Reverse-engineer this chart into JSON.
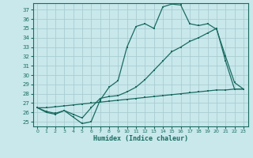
{
  "xlabel": "Humidex (Indice chaleur)",
  "bg_color": "#c8e8ec",
  "line_color": "#1a6b60",
  "grid_color": "#b0d4d8",
  "xlim": [
    -0.5,
    23.5
  ],
  "ylim": [
    24.5,
    37.7
  ],
  "yticks": [
    25,
    26,
    27,
    28,
    29,
    30,
    31,
    32,
    33,
    34,
    35,
    36,
    37
  ],
  "xticks": [
    0,
    1,
    2,
    3,
    4,
    5,
    6,
    7,
    8,
    9,
    10,
    11,
    12,
    13,
    14,
    15,
    16,
    17,
    18,
    19,
    20,
    21,
    22,
    23
  ],
  "line1_x": [
    0,
    1,
    2,
    3,
    4,
    5,
    6,
    7,
    8,
    9,
    10,
    11,
    12,
    13,
    14,
    15,
    16,
    17,
    18,
    19,
    20,
    21,
    22,
    23
  ],
  "line1_y": [
    26.5,
    26.0,
    25.8,
    26.2,
    25.5,
    24.8,
    25.0,
    27.3,
    28.7,
    29.4,
    33.0,
    35.2,
    35.5,
    35.0,
    37.3,
    37.6,
    37.5,
    35.5,
    35.3,
    35.5,
    34.9,
    32.0,
    29.2,
    28.5
  ],
  "line2_x": [
    0,
    1,
    2,
    3,
    4,
    5,
    6,
    7,
    8,
    9,
    10,
    11,
    12,
    13,
    14,
    15,
    16,
    17,
    18,
    19,
    20,
    21,
    22,
    23
  ],
  "line2_y": [
    26.5,
    26.1,
    25.9,
    26.2,
    25.8,
    25.4,
    26.5,
    27.5,
    27.7,
    27.8,
    28.2,
    28.7,
    29.5,
    30.5,
    31.5,
    32.5,
    33.0,
    33.6,
    34.0,
    34.5,
    35.0,
    31.5,
    28.5,
    28.5
  ],
  "line3_x": [
    0,
    1,
    2,
    3,
    4,
    5,
    6,
    7,
    8,
    9,
    10,
    11,
    12,
    13,
    14,
    15,
    16,
    17,
    18,
    19,
    20,
    21,
    22,
    23
  ],
  "line3_y": [
    26.5,
    26.5,
    26.6,
    26.7,
    26.8,
    26.9,
    27.0,
    27.1,
    27.2,
    27.3,
    27.4,
    27.5,
    27.6,
    27.7,
    27.8,
    27.9,
    28.0,
    28.1,
    28.2,
    28.3,
    28.4,
    28.4,
    28.5,
    28.5
  ]
}
